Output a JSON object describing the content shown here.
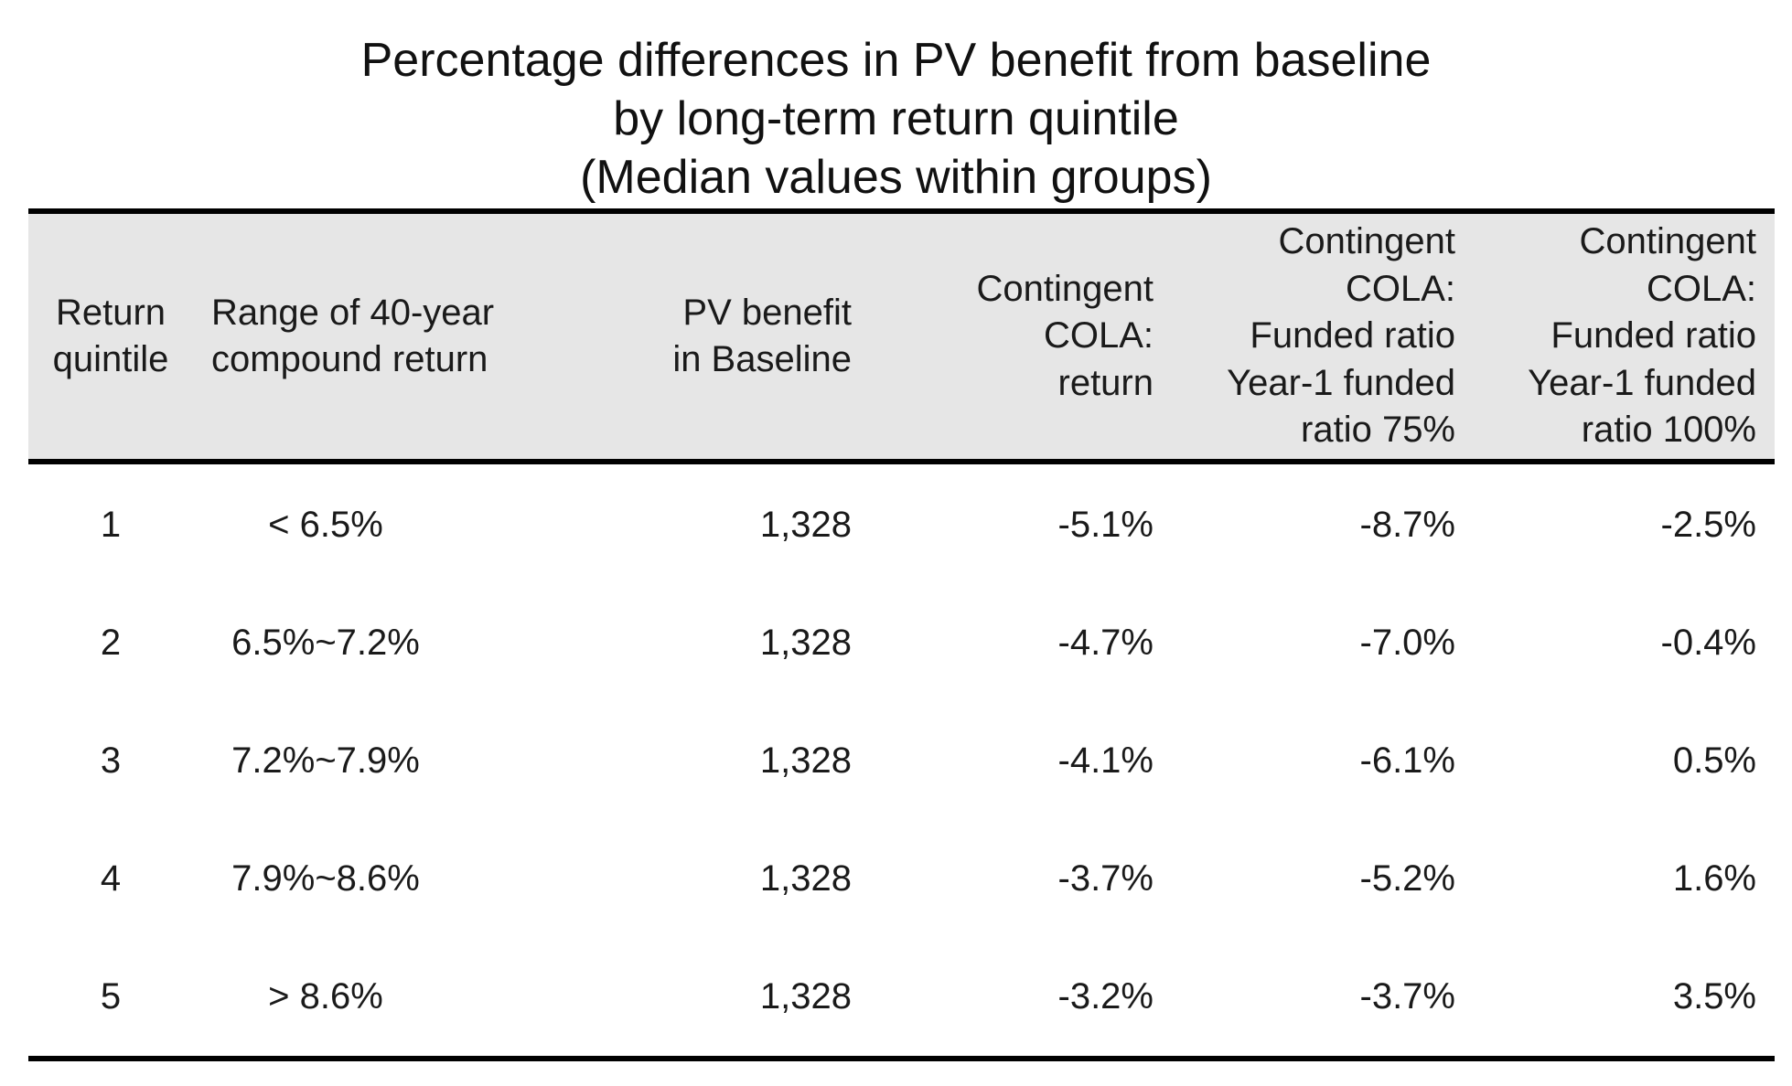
{
  "chart_data": {
    "type": "table",
    "title": [
      "Percentage differences in PV benefit from baseline",
      "by long-term return quintile",
      "(Median values within groups)"
    ],
    "columns": [
      {
        "lines": [
          "Return",
          "quintile"
        ]
      },
      {
        "lines": [
          "Range of 40-year",
          "compound return"
        ]
      },
      {
        "lines": [
          "PV benefit",
          "in Baseline"
        ]
      },
      {
        "lines": [
          "Contingent",
          "COLA:",
          "return"
        ]
      },
      {
        "lines": [
          "Contingent",
          "COLA:",
          "Funded ratio",
          "Year-1 funded",
          "ratio 75%"
        ]
      },
      {
        "lines": [
          "Contingent",
          "COLA:",
          "Funded ratio",
          "Year-1 funded",
          "ratio 100%"
        ]
      }
    ],
    "rows": [
      [
        "1",
        "< 6.5%",
        "1,328",
        "-5.1%",
        "-8.7%",
        "-2.5%"
      ],
      [
        "2",
        "6.5%~7.2%",
        "1,328",
        "-4.7%",
        "-7.0%",
        "-0.4%"
      ],
      [
        "3",
        "7.2%~7.9%",
        "1,328",
        "-4.1%",
        "-6.1%",
        "0.5%"
      ],
      [
        "4",
        "7.9%~8.6%",
        "1,328",
        "-3.7%",
        "-5.2%",
        "1.6%"
      ],
      [
        "5",
        "> 8.6%",
        "1,328",
        "-3.2%",
        "-3.7%",
        "3.5%"
      ]
    ]
  }
}
